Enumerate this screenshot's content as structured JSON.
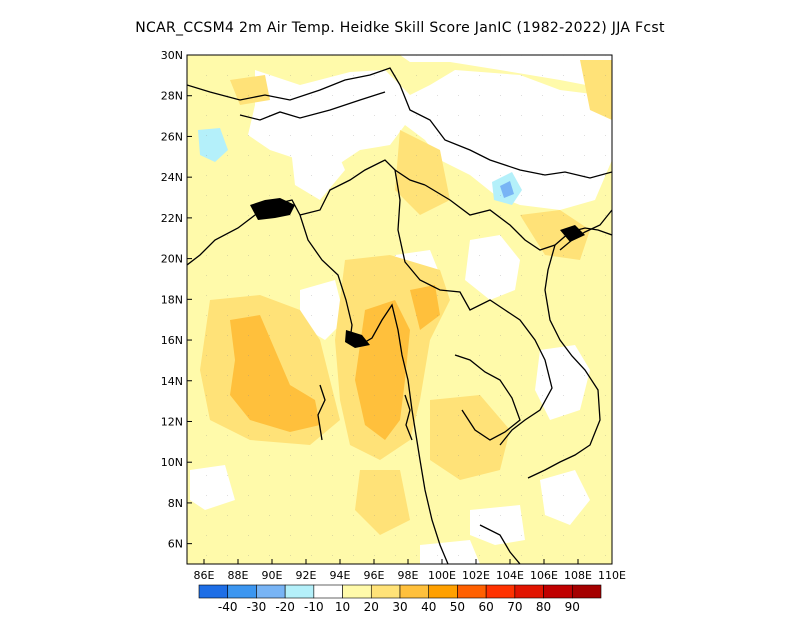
{
  "title": "NCAR_CCSM4  2m Air Temp. Heidke Skill Score JanIC (1982-2022) JJA Fcst",
  "map": {
    "lon_range": [
      85,
      110
    ],
    "lat_range": [
      5,
      30
    ],
    "x_ticks": [
      "86E",
      "88E",
      "90E",
      "92E",
      "94E",
      "96E",
      "98E",
      "100E",
      "102E",
      "104E",
      "106E",
      "108E",
      "110E"
    ],
    "y_ticks": [
      "6N",
      "8N",
      "10N",
      "12N",
      "14N",
      "16N",
      "18N",
      "20N",
      "22N",
      "24N",
      "26N",
      "28N",
      "30N"
    ],
    "colorbar": {
      "labels": [
        "-40",
        "-30",
        "-20",
        "-10",
        "10",
        "20",
        "30",
        "40",
        "50",
        "60",
        "70",
        "80",
        "90"
      ],
      "colors": [
        "#1e6ee6",
        "#3c96f0",
        "#78b4f5",
        "#b4f0fa",
        "#ffffff",
        "#fffaaa",
        "#ffe278",
        "#ffc03c",
        "#ffa000",
        "#ff6000",
        "#ff3200",
        "#e11400",
        "#c00000",
        "#a50000"
      ]
    }
  }
}
